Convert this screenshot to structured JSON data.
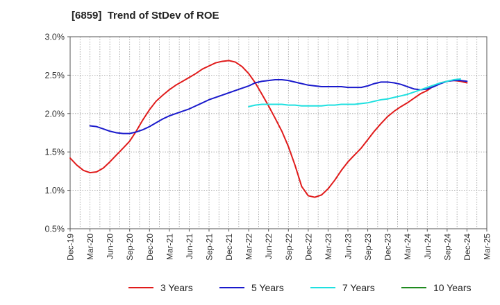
{
  "chart_data": {
    "type": "line",
    "title": "[6859]  Trend of StDev of ROE",
    "y_ticks": [
      "3.0%",
      "2.5%",
      "2.0%",
      "1.5%",
      "1.0%",
      "0.5%"
    ],
    "ylim": [
      0.5,
      3.0
    ],
    "x_ticks": [
      "Dec-19",
      "Mar-20",
      "Jun-20",
      "Sep-20",
      "Dec-20",
      "Mar-21",
      "Jun-21",
      "Sep-21",
      "Dec-21",
      "Mar-22",
      "Jun-22",
      "Sep-22",
      "Dec-22",
      "Mar-23",
      "Jun-23",
      "Sep-23",
      "Dec-23",
      "Mar-24",
      "Jun-24",
      "Sep-24",
      "Dec-24",
      "Mar-25"
    ],
    "xlim": [
      0,
      21
    ],
    "grid": true,
    "legend_position": "bottom",
    "series": [
      {
        "name": "3 Years",
        "color": "#e01b1b",
        "points": [
          [
            0,
            1.42
          ],
          [
            0.33,
            1.33
          ],
          [
            0.67,
            1.26
          ],
          [
            1,
            1.23
          ],
          [
            1.33,
            1.24
          ],
          [
            1.67,
            1.29
          ],
          [
            2,
            1.37
          ],
          [
            2.33,
            1.46
          ],
          [
            2.67,
            1.55
          ],
          [
            3,
            1.64
          ],
          [
            3.33,
            1.77
          ],
          [
            3.67,
            1.92
          ],
          [
            4,
            2.05
          ],
          [
            4.33,
            2.16
          ],
          [
            4.67,
            2.24
          ],
          [
            5,
            2.31
          ],
          [
            5.33,
            2.37
          ],
          [
            5.67,
            2.42
          ],
          [
            6,
            2.47
          ],
          [
            6.33,
            2.52
          ],
          [
            6.67,
            2.58
          ],
          [
            7,
            2.62
          ],
          [
            7.33,
            2.66
          ],
          [
            7.67,
            2.68
          ],
          [
            8,
            2.69
          ],
          [
            8.33,
            2.67
          ],
          [
            8.67,
            2.61
          ],
          [
            9,
            2.52
          ],
          [
            9.33,
            2.4
          ],
          [
            9.67,
            2.25
          ],
          [
            10,
            2.1
          ],
          [
            10.33,
            1.94
          ],
          [
            10.67,
            1.77
          ],
          [
            11,
            1.57
          ],
          [
            11.33,
            1.33
          ],
          [
            11.67,
            1.05
          ],
          [
            12,
            0.93
          ],
          [
            12.33,
            0.91
          ],
          [
            12.67,
            0.94
          ],
          [
            13,
            1.02
          ],
          [
            13.33,
            1.13
          ],
          [
            13.67,
            1.26
          ],
          [
            14,
            1.37
          ],
          [
            14.33,
            1.46
          ],
          [
            14.67,
            1.55
          ],
          [
            15,
            1.66
          ],
          [
            15.33,
            1.77
          ],
          [
            15.67,
            1.87
          ],
          [
            16,
            1.96
          ],
          [
            16.33,
            2.03
          ],
          [
            16.67,
            2.09
          ],
          [
            17,
            2.14
          ],
          [
            17.33,
            2.2
          ],
          [
            17.67,
            2.26
          ],
          [
            18,
            2.3
          ],
          [
            18.33,
            2.36
          ],
          [
            18.67,
            2.4
          ],
          [
            19,
            2.42
          ],
          [
            19.33,
            2.43
          ],
          [
            19.67,
            2.42
          ],
          [
            20,
            2.4
          ]
        ]
      },
      {
        "name": "5 Years",
        "color": "#1a1acc",
        "points": [
          [
            1,
            1.84
          ],
          [
            1.33,
            1.83
          ],
          [
            1.67,
            1.8
          ],
          [
            2,
            1.77
          ],
          [
            2.33,
            1.75
          ],
          [
            2.67,
            1.74
          ],
          [
            3,
            1.74
          ],
          [
            3.33,
            1.76
          ],
          [
            3.67,
            1.79
          ],
          [
            4,
            1.83
          ],
          [
            4.33,
            1.88
          ],
          [
            4.67,
            1.93
          ],
          [
            5,
            1.97
          ],
          [
            5.33,
            2.0
          ],
          [
            5.67,
            2.03
          ],
          [
            6,
            2.06
          ],
          [
            6.33,
            2.1
          ],
          [
            6.67,
            2.14
          ],
          [
            7,
            2.18
          ],
          [
            7.33,
            2.21
          ],
          [
            7.67,
            2.24
          ],
          [
            8,
            2.27
          ],
          [
            8.33,
            2.3
          ],
          [
            8.67,
            2.33
          ],
          [
            9,
            2.36
          ],
          [
            9.33,
            2.4
          ],
          [
            9.67,
            2.42
          ],
          [
            10,
            2.43
          ],
          [
            10.33,
            2.44
          ],
          [
            10.67,
            2.44
          ],
          [
            11,
            2.43
          ],
          [
            11.33,
            2.41
          ],
          [
            11.67,
            2.39
          ],
          [
            12,
            2.37
          ],
          [
            12.33,
            2.36
          ],
          [
            12.67,
            2.35
          ],
          [
            13,
            2.35
          ],
          [
            13.33,
            2.35
          ],
          [
            13.67,
            2.35
          ],
          [
            14,
            2.34
          ],
          [
            14.33,
            2.34
          ],
          [
            14.67,
            2.34
          ],
          [
            15,
            2.36
          ],
          [
            15.33,
            2.39
          ],
          [
            15.67,
            2.41
          ],
          [
            16,
            2.41
          ],
          [
            16.33,
            2.4
          ],
          [
            16.67,
            2.38
          ],
          [
            17,
            2.35
          ],
          [
            17.33,
            2.32
          ],
          [
            17.67,
            2.31
          ],
          [
            18,
            2.32
          ],
          [
            18.33,
            2.35
          ],
          [
            18.67,
            2.39
          ],
          [
            19,
            2.42
          ],
          [
            19.33,
            2.43
          ],
          [
            19.67,
            2.43
          ],
          [
            20,
            2.42
          ]
        ]
      },
      {
        "name": "7 Years",
        "color": "#1fe0e0",
        "points": [
          [
            9,
            2.09
          ],
          [
            9.33,
            2.11
          ],
          [
            9.67,
            2.12
          ],
          [
            10,
            2.12
          ],
          [
            10.33,
            2.12
          ],
          [
            10.67,
            2.12
          ],
          [
            11,
            2.11
          ],
          [
            11.33,
            2.11
          ],
          [
            11.67,
            2.1
          ],
          [
            12,
            2.1
          ],
          [
            12.33,
            2.1
          ],
          [
            12.67,
            2.1
          ],
          [
            13,
            2.11
          ],
          [
            13.33,
            2.11
          ],
          [
            13.67,
            2.12
          ],
          [
            14,
            2.12
          ],
          [
            14.33,
            2.12
          ],
          [
            14.67,
            2.13
          ],
          [
            15,
            2.14
          ],
          [
            15.33,
            2.16
          ],
          [
            15.67,
            2.18
          ],
          [
            16,
            2.19
          ],
          [
            16.33,
            2.21
          ],
          [
            16.67,
            2.23
          ],
          [
            17,
            2.25
          ],
          [
            17.33,
            2.28
          ],
          [
            17.67,
            2.31
          ],
          [
            18,
            2.34
          ],
          [
            18.33,
            2.37
          ],
          [
            18.67,
            2.4
          ],
          [
            19,
            2.42
          ],
          [
            19.33,
            2.44
          ],
          [
            19.67,
            2.45
          ]
        ]
      },
      {
        "name": "10 Years",
        "color": "#1f8a1f",
        "points": []
      }
    ]
  }
}
